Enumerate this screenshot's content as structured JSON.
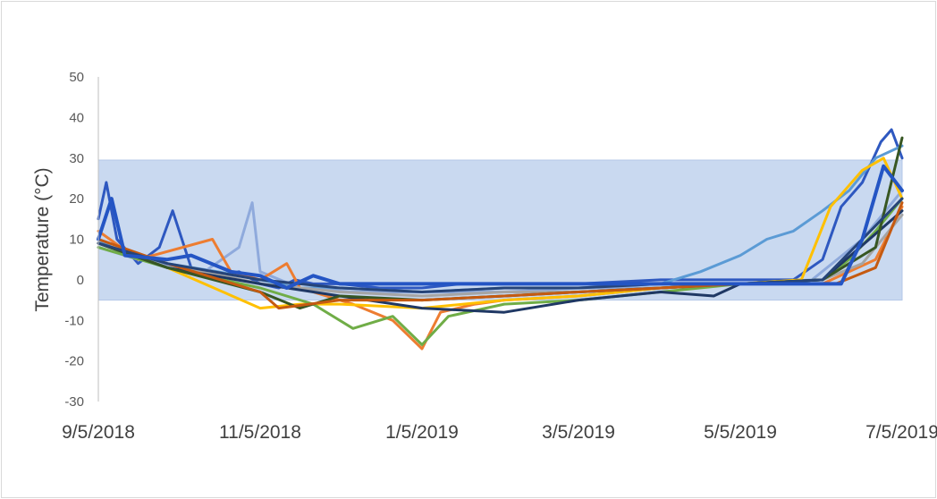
{
  "chart_data": {
    "type": "line",
    "title": "",
    "xlabel": "",
    "ylabel": "Temperature (°C)",
    "xlim": [
      "9/5/2018",
      "7/5/2019"
    ],
    "ylim": [
      -30,
      50
    ],
    "y_ticks": [
      "50",
      "40",
      "30",
      "20",
      "10",
      "0",
      "-10",
      "-20",
      "-30"
    ],
    "x_ticks": [
      "9/5/2018",
      "11/5/2018",
      "1/5/2019",
      "3/5/2019",
      "5/5/2019",
      "7/5/2019"
    ],
    "grid": false,
    "legend": "none",
    "band": {
      "from": -5,
      "to": 29.5,
      "color": "#c9d9f0"
    },
    "series": [
      {
        "color": "#2e58c0",
        "points": [
          [
            "9/5/2018",
            15
          ],
          [
            "9/8/2018",
            24
          ],
          [
            "9/12/2018",
            10
          ],
          [
            "9/20/2018",
            4
          ],
          [
            "9/28/2018",
            8
          ],
          [
            "10/3/2018",
            17
          ],
          [
            "10/10/2018",
            3
          ],
          [
            "10/20/2018",
            1
          ],
          [
            "10/28/2018",
            2
          ],
          [
            "11/5/2018",
            -1
          ],
          [
            "11/12/2018",
            -2
          ],
          [
            "11/18/2018",
            0
          ],
          [
            "11/25/2018",
            -1
          ],
          [
            "12/5/2018",
            -1
          ],
          [
            "12/20/2018",
            -2
          ],
          [
            "1/5/2019",
            -2
          ],
          [
            "1/20/2019",
            -1
          ],
          [
            "2/5/2019",
            -1
          ],
          [
            "3/5/2019",
            -1
          ],
          [
            "4/5/2019",
            0
          ],
          [
            "5/5/2019",
            0
          ],
          [
            "5/25/2019",
            0
          ],
          [
            "6/5/2019",
            5
          ],
          [
            "6/12/2019",
            18
          ],
          [
            "6/20/2019",
            24
          ],
          [
            "6/27/2019",
            34
          ],
          [
            "7/1/2019",
            37
          ],
          [
            "7/5/2019",
            30
          ]
        ]
      },
      {
        "color": "#5b9bd5",
        "points": [
          [
            "9/5/2018",
            10
          ],
          [
            "9/15/2018",
            6
          ],
          [
            "10/1/2018",
            4
          ],
          [
            "10/20/2018",
            2
          ],
          [
            "11/5/2018",
            0
          ],
          [
            "11/20/2018",
            -2
          ],
          [
            "12/5/2018",
            -2
          ],
          [
            "1/5/2019",
            -3
          ],
          [
            "2/5/2019",
            -2
          ],
          [
            "3/5/2019",
            -2
          ],
          [
            "4/5/2019",
            -1
          ],
          [
            "4/20/2019",
            2
          ],
          [
            "5/5/2019",
            6
          ],
          [
            "5/15/2019",
            10
          ],
          [
            "5/25/2019",
            12
          ],
          [
            "6/5/2019",
            17
          ],
          [
            "6/15/2019",
            22
          ],
          [
            "6/25/2019",
            30
          ],
          [
            "7/5/2019",
            33
          ]
        ]
      },
      {
        "color": "#8faadc",
        "points": [
          [
            "9/5/2018",
            8
          ],
          [
            "9/20/2018",
            5
          ],
          [
            "10/15/2018",
            2
          ],
          [
            "10/28/2018",
            8
          ],
          [
            "11/2/2018",
            19
          ],
          [
            "11/5/2018",
            2
          ],
          [
            "11/20/2018",
            -2
          ],
          [
            "12/10/2018",
            -3
          ],
          [
            "1/5/2019",
            -3
          ],
          [
            "2/5/2019",
            -3
          ],
          [
            "3/5/2019",
            -2
          ],
          [
            "4/5/2019",
            -2
          ],
          [
            "5/5/2019",
            -1
          ],
          [
            "6/1/2019",
            0
          ],
          [
            "6/20/2019",
            10
          ],
          [
            "7/5/2019",
            22
          ]
        ]
      },
      {
        "color": "#ed7d31",
        "points": [
          [
            "9/5/2018",
            12
          ],
          [
            "9/20/2018",
            5
          ],
          [
            "10/18/2018",
            10
          ],
          [
            "10/25/2018",
            2
          ],
          [
            "11/5/2018",
            0
          ],
          [
            "11/15/2018",
            4
          ],
          [
            "11/20/2018",
            -2
          ],
          [
            "12/10/2018",
            -6
          ],
          [
            "12/25/2018",
            -10
          ],
          [
            "1/5/2019",
            -17
          ],
          [
            "1/12/2019",
            -8
          ],
          [
            "1/25/2019",
            -6
          ],
          [
            "2/5/2019",
            -5
          ],
          [
            "3/5/2019",
            -4
          ],
          [
            "4/5/2019",
            -2
          ],
          [
            "5/5/2019",
            -1
          ],
          [
            "6/5/2019",
            -1
          ],
          [
            "6/15/2019",
            2
          ],
          [
            "6/25/2019",
            5
          ],
          [
            "7/5/2019",
            18
          ]
        ]
      },
      {
        "color": "#ffc000",
        "points": [
          [
            "9/5/2018",
            9
          ],
          [
            "10/1/2018",
            3
          ],
          [
            "11/5/2018",
            -7
          ],
          [
            "11/20/2018",
            -6
          ],
          [
            "12/5/2018",
            -6
          ],
          [
            "1/5/2019",
            -7
          ],
          [
            "2/5/2019",
            -5
          ],
          [
            "3/5/2019",
            -4
          ],
          [
            "4/5/2019",
            -2
          ],
          [
            "5/5/2019",
            -1
          ],
          [
            "5/28/2019",
            0
          ],
          [
            "6/8/2019",
            18
          ],
          [
            "6/20/2019",
            27
          ],
          [
            "6/28/2019",
            30
          ],
          [
            "7/5/2019",
            20
          ]
        ]
      },
      {
        "color": "#70ad47",
        "points": [
          [
            "9/5/2018",
            8
          ],
          [
            "10/1/2018",
            3
          ],
          [
            "11/5/2018",
            -2
          ],
          [
            "11/25/2018",
            -6
          ],
          [
            "12/10/2018",
            -12
          ],
          [
            "12/25/2018",
            -9
          ],
          [
            "1/5/2019",
            -16
          ],
          [
            "1/15/2019",
            -9
          ],
          [
            "2/5/2019",
            -6
          ],
          [
            "3/5/2019",
            -5
          ],
          [
            "4/5/2019",
            -3
          ],
          [
            "5/5/2019",
            -1
          ],
          [
            "6/5/2019",
            0
          ],
          [
            "6/15/2019",
            5
          ],
          [
            "6/25/2019",
            12
          ],
          [
            "7/5/2019",
            20
          ]
        ]
      },
      {
        "color": "#a5a5a5",
        "points": [
          [
            "9/5/2018",
            9
          ],
          [
            "10/1/2018",
            4
          ],
          [
            "11/5/2018",
            -1
          ],
          [
            "12/5/2018",
            -3
          ],
          [
            "1/5/2019",
            -4
          ],
          [
            "2/5/2019",
            -3
          ],
          [
            "3/5/2019",
            -3
          ],
          [
            "4/5/2019",
            -2
          ],
          [
            "5/5/2019",
            -1
          ],
          [
            "6/5/2019",
            0
          ],
          [
            "6/20/2019",
            4
          ],
          [
            "7/5/2019",
            16
          ]
        ]
      },
      {
        "color": "#1f3864",
        "points": [
          [
            "9/5/2018",
            9
          ],
          [
            "10/1/2018",
            3
          ],
          [
            "11/5/2018",
            -1
          ],
          [
            "12/5/2018",
            -4
          ],
          [
            "1/5/2019",
            -7
          ],
          [
            "2/5/2019",
            -8
          ],
          [
            "3/5/2019",
            -5
          ],
          [
            "4/5/2019",
            -3
          ],
          [
            "4/25/2019",
            -4
          ],
          [
            "5/5/2019",
            -1
          ],
          [
            "6/5/2019",
            0
          ],
          [
            "7/5/2019",
            17
          ]
        ]
      },
      {
        "color": "#375623",
        "points": [
          [
            "9/5/2018",
            9
          ],
          [
            "10/1/2018",
            3
          ],
          [
            "11/5/2018",
            -3
          ],
          [
            "11/20/2018",
            -7
          ],
          [
            "12/5/2018",
            -4
          ],
          [
            "1/5/2019",
            -5
          ],
          [
            "2/5/2019",
            -4
          ],
          [
            "3/5/2019",
            -3
          ],
          [
            "4/5/2019",
            -2
          ],
          [
            "5/5/2019",
            -1
          ],
          [
            "6/5/2019",
            0
          ],
          [
            "6/25/2019",
            8
          ],
          [
            "7/5/2019",
            35
          ]
        ]
      },
      {
        "color": "#c55a11",
        "points": [
          [
            "9/5/2018",
            10
          ],
          [
            "10/1/2018",
            4
          ],
          [
            "11/5/2018",
            -3
          ],
          [
            "11/12/2018",
            -7
          ],
          [
            "12/5/2018",
            -5
          ],
          [
            "1/5/2019",
            -5
          ],
          [
            "2/5/2019",
            -4
          ],
          [
            "3/5/2019",
            -3
          ],
          [
            "4/5/2019",
            -2
          ],
          [
            "5/5/2019",
            -1
          ],
          [
            "6/10/2019",
            -1
          ],
          [
            "6/25/2019",
            3
          ],
          [
            "7/5/2019",
            19
          ]
        ]
      },
      {
        "color": "#264478",
        "points": [
          [
            "9/5/2018",
            9
          ],
          [
            "10/1/2018",
            4
          ],
          [
            "11/5/2018",
            0
          ],
          [
            "11/20/2018",
            -1
          ],
          [
            "12/5/2018",
            -2
          ],
          [
            "1/5/2019",
            -3
          ],
          [
            "2/5/2019",
            -2
          ],
          [
            "3/5/2019",
            -2
          ],
          [
            "4/5/2019",
            -1
          ],
          [
            "5/5/2019",
            -1
          ],
          [
            "6/5/2019",
            0
          ],
          [
            "7/5/2019",
            20
          ]
        ]
      },
      {
        "color": "#2455c4",
        "points": [
          [
            "9/5/2018",
            10
          ],
          [
            "9/10/2018",
            20
          ],
          [
            "9/15/2018",
            6
          ],
          [
            "10/1/2018",
            5
          ],
          [
            "10/10/2018",
            6
          ],
          [
            "10/25/2018",
            2
          ],
          [
            "11/5/2018",
            1
          ],
          [
            "11/15/2018",
            -2
          ],
          [
            "11/25/2018",
            1
          ],
          [
            "12/5/2018",
            -1
          ],
          [
            "12/15/2018",
            -1
          ],
          [
            "1/5/2019",
            -1
          ],
          [
            "2/5/2019",
            -1
          ],
          [
            "3/5/2019",
            -1
          ],
          [
            "4/5/2019",
            -1
          ],
          [
            "5/5/2019",
            -1
          ],
          [
            "6/5/2019",
            -1
          ],
          [
            "6/12/2019",
            -1
          ],
          [
            "6/20/2019",
            10
          ],
          [
            "6/28/2019",
            28
          ],
          [
            "7/5/2019",
            22
          ]
        ]
      }
    ]
  }
}
